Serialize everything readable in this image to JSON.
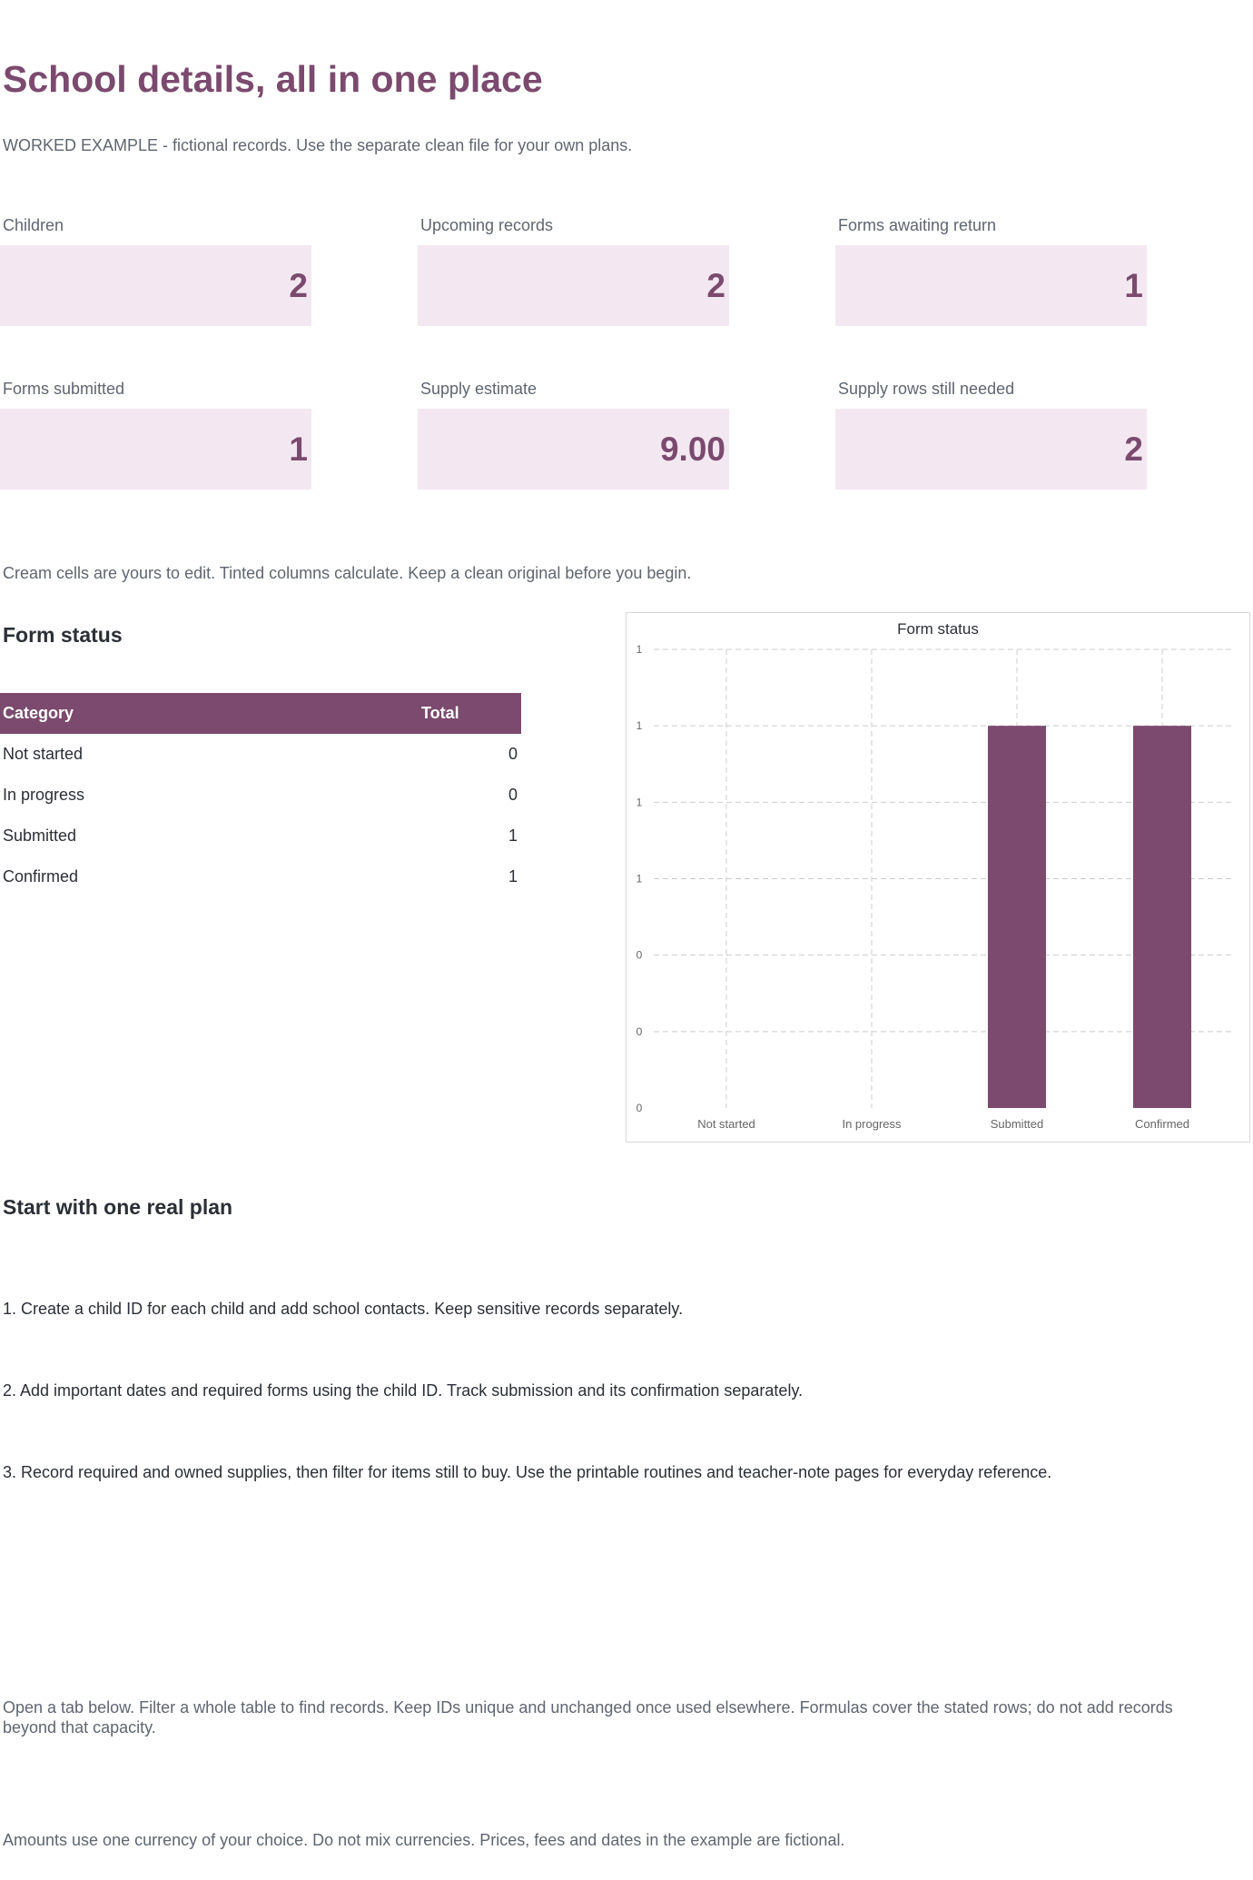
{
  "header": {
    "title": "School details, all in one place",
    "subtitle": "WORKED EXAMPLE - fictional records. Use the separate clean file for your own plans."
  },
  "kpis": [
    {
      "label": "Children",
      "value": "2"
    },
    {
      "label": "Upcoming records",
      "value": "2"
    },
    {
      "label": "Forms awaiting return",
      "value": "1"
    },
    {
      "label": "Forms submitted",
      "value": "1"
    },
    {
      "label": "Supply estimate",
      "value": "9.00"
    },
    {
      "label": "Supply rows still needed",
      "value": "2"
    }
  ],
  "edit_note": "Cream cells are yours to edit. Tinted columns calculate. Keep a clean original before you begin.",
  "form_status": {
    "section_title": "Form status",
    "columns": [
      "Category",
      "Total"
    ],
    "rows": [
      {
        "category": "Not started",
        "total": "0"
      },
      {
        "category": "In progress",
        "total": "0"
      },
      {
        "category": "Submitted",
        "total": "1"
      },
      {
        "category": "Confirmed",
        "total": "1"
      }
    ]
  },
  "chart_data": {
    "type": "bar",
    "title": "Form status",
    "categories": [
      "Not started",
      "In progress",
      "Submitted",
      "Confirmed"
    ],
    "values": [
      0,
      0,
      1,
      1
    ],
    "ylim": [
      0,
      1.2
    ],
    "y_tick_labels": [
      "0",
      "0",
      "0",
      "1",
      "1",
      "1",
      "1"
    ],
    "grid": true,
    "bar_color": "#7b4a6e",
    "xlabel": "",
    "ylabel": ""
  },
  "plan": {
    "section_title": "Start with one real plan",
    "steps": [
      "1. Create a child ID for each child and add school contacts. Keep sensitive records separately.",
      "2. Add important dates and required forms using the child ID. Track submission and its confirmation separately.",
      "3. Record required and owned supplies, then filter for items still to buy. Use the printable routines and teacher-note pages for everyday reference."
    ]
  },
  "footer": {
    "tab_note": "Open a tab below. Filter a whole table to find records. Keep IDs unique and unchanged once used elsewhere. Formulas cover the stated rows; do not add records beyond that capacity.",
    "currency_note": "Amounts use one currency of your choice. Do not mix currencies. Prices, fees and dates in the example are fictional."
  }
}
